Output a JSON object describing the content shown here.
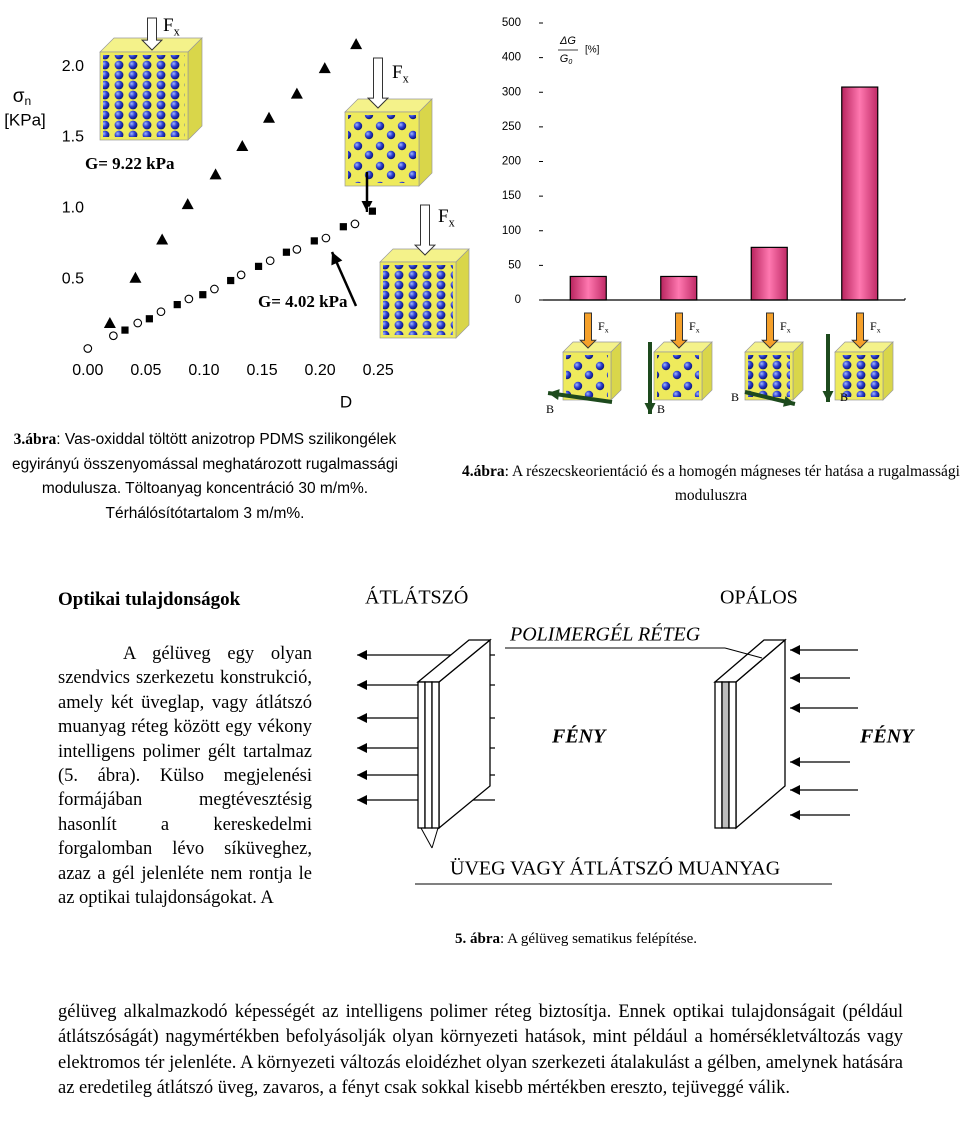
{
  "chart_data": [
    {
      "type": "scatter",
      "y_label": {
        "base": "σ",
        "sub": "n",
        "unit": "[KPa]"
      },
      "x_label": "D",
      "xlim": [
        -0.005,
        0.255
      ],
      "ylim": [
        -0.05,
        2.45
      ],
      "xticks": [
        {
          "value": 0,
          "label": "0.00"
        },
        0.05,
        {
          "value": 0.1,
          "label": "0.10"
        },
        0.15,
        {
          "value": 0.2,
          "label": "0.20"
        },
        0.25
      ],
      "yticks": [
        {
          "value": 0.5,
          "label": "0.5"
        },
        {
          "value": 1,
          "label": "1.0"
        },
        1.5,
        {
          "value": 2,
          "label": "2.0"
        }
      ],
      "series": [
        {
          "marker": "triangle",
          "color": "#000000",
          "x": [
            0.019,
            0.041,
            0.064,
            0.086,
            0.11,
            0.133,
            0.156,
            0.18,
            0.204,
            0.231
          ],
          "values": [
            0.19,
            0.51,
            0.78,
            1.03,
            1.24,
            1.44,
            1.64,
            1.81,
            1.99,
            2.16
          ]
        },
        {
          "marker": "square",
          "color": "#000000",
          "x": [
            0.032,
            0.053,
            0.077,
            0.099,
            0.123,
            0.147,
            0.171,
            0.195,
            0.22,
            0.245
          ],
          "values": [
            0.14,
            0.22,
            0.32,
            0.39,
            0.49,
            0.59,
            0.69,
            0.77,
            0.87,
            0.98
          ]
        },
        {
          "marker": "circle",
          "color": "#000000",
          "x": [
            0,
            0.022,
            0.043,
            0.063,
            0.087,
            0.109,
            0.132,
            0.157,
            0.18,
            0.205,
            0.23
          ],
          "values": [
            0.01,
            0.1,
            0.19,
            0.27,
            0.36,
            0.43,
            0.53,
            0.63,
            0.71,
            0.79,
            0.89
          ]
        }
      ],
      "annotations": [
        "G= 9.22 kPa",
        "G= 4.02 kPa"
      ]
    },
    {
      "type": "bar",
      "y_label": {
        "numerator": "ΔG",
        "denominator": "G",
        "denominator_sub": "0",
        "unit": "[%]"
      },
      "categories": [
        null,
        null,
        null,
        null
      ],
      "values": [
        34,
        34,
        76,
        315
      ],
      "color": "#e8458a",
      "ylim": [
        0,
        500
      ],
      "yticks": [
        0,
        50,
        100,
        150,
        200,
        250,
        300,
        400,
        500
      ],
      "y_scale": "piecewise"
    }
  ],
  "force_label": {
    "base": "F",
    "sub": "x"
  },
  "field_label": "B",
  "captions": {
    "fig3": {
      "label": "3.ábra",
      "text": ": Vas-oxiddal töltött anizotrop PDMS szilikongélek egyirányú összenyomással meghatározott rugalmassági modulusza. Töltoanyag koncentráció 30 m/m%. Térhálósítótartalom 3 m/m%."
    },
    "fig4": {
      "label": "4.ábra",
      "text": ": A részecskeorientáció és a homogén mágneses tér hatása a rugalmassági moduluszra"
    },
    "fig5": {
      "label": "5. ábra",
      "text": ": A gélüveg sematikus felépítése."
    }
  },
  "figure5": {
    "left_title": "ÁTLÁTSZÓ",
    "right_title": "OPÁLOS",
    "gel_layer": "POLIMERGÉL RÉTEG",
    "light": "FÉNY",
    "glass": "ÜVEG VAGY ÁTLÁTSZÓ MUANYAG"
  },
  "section": {
    "heading": "Optikai tulajdonságok",
    "paragraph_wrapped": "A gélüveg egy olyan szendvics szerkezetu konstrukció, amely két üveglap, vagy átlátszó muanyag réteg között egy vékony intelligens polimer gélt tartalmaz (5. ábra). Külso megjelenési formájában megtévesztésig hasonlít a kereskedelmi forgalomban lévo síküveghez, azaz a gél jelenléte nem rontja le az optikai tulajdonságokat. A",
    "paragraph_full": "gélüveg alkalmazkodó képességét az intelligens polimer réteg biztosítja. Ennek optikai tulajdonságait (például átlátszóságát) nagymértékben befolyásolják olyan környezeti hatások, mint például a homérsékletváltozás vagy elektromos tér jelenléte. A környezeti változás eloidézhet olyan szerkezeti átalakulást a gélben, amelynek hatására az eredetileg átlátszó üveg, zavaros, a fényt csak sokkal kisebb mértékben ereszto, tejüveggé válik."
  }
}
